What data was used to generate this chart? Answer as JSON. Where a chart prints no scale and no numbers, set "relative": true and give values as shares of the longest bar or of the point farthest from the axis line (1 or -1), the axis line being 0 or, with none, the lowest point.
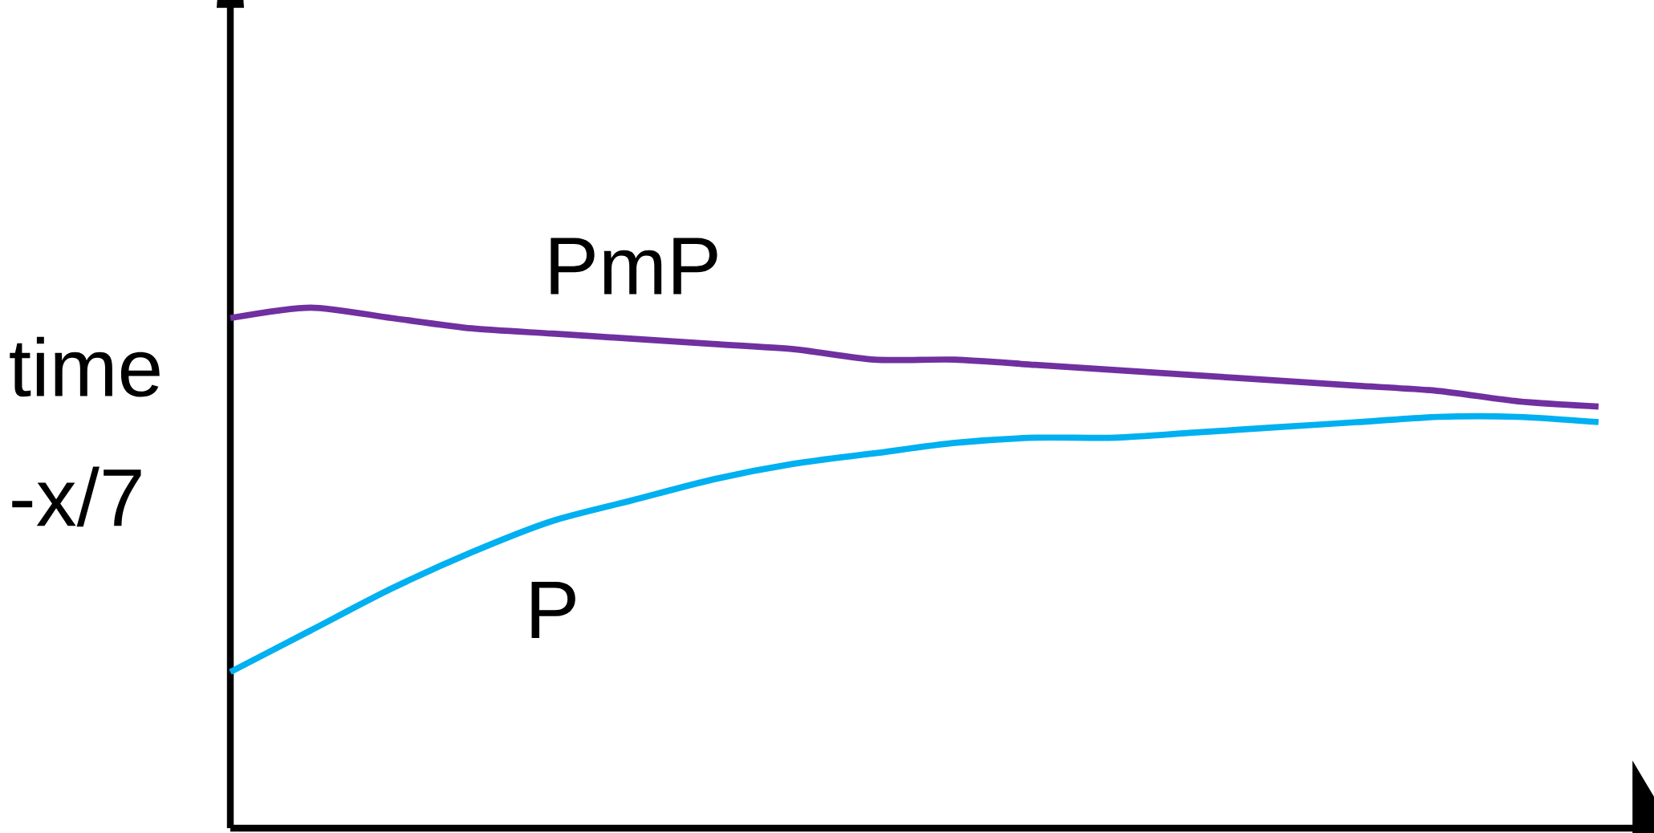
{
  "chart_data": {
    "type": "line",
    "relative": true,
    "ylabel": "time -x/7",
    "categories": [
      null,
      null,
      null,
      null,
      null,
      null,
      null,
      null,
      null,
      null,
      null,
      null,
      null,
      null,
      null,
      null,
      null,
      null
    ],
    "series": [
      {
        "name": "PmP",
        "color": "#7030a0",
        "values": [
          0.98,
          1.0,
          0.98,
          0.96,
          0.95,
          0.94,
          0.93,
          0.92,
          0.9,
          0.9,
          0.89,
          0.88,
          0.87,
          0.86,
          0.85,
          0.84,
          0.82,
          0.81
        ]
      },
      {
        "name": "P",
        "color": "#00b0f0",
        "values": [
          0.3,
          0.38,
          0.46,
          0.53,
          0.59,
          0.63,
          0.67,
          0.7,
          0.72,
          0.74,
          0.75,
          0.75,
          0.76,
          0.77,
          0.78,
          0.79,
          0.79,
          0.78
        ]
      }
    ]
  }
}
